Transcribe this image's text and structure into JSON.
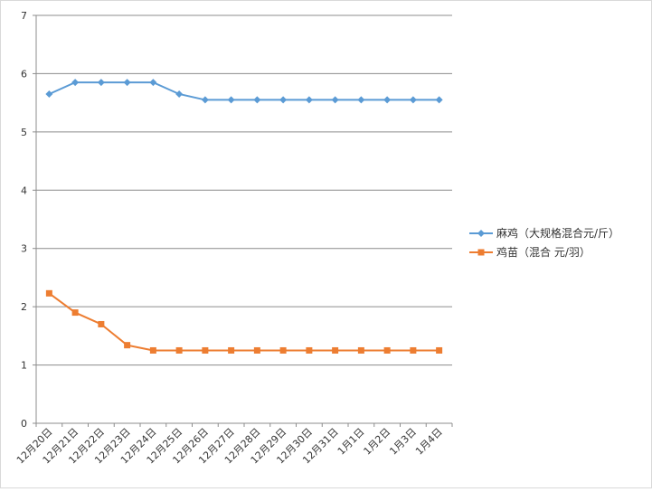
{
  "chart_data": {
    "type": "line",
    "categories": [
      "12月20日",
      "12月21日",
      "12月22日",
      "12月23日",
      "12月24日",
      "12月25日",
      "12月26日",
      "12月27日",
      "12月28日",
      "12月29日",
      "12月30日",
      "12月31日",
      "1月1日",
      "1月2日",
      "1月3日",
      "1月4日"
    ],
    "series": [
      {
        "name": "麻鸡（大规格混合元/斤）",
        "color": "#5B9BD5",
        "marker": "diamond",
        "values": [
          5.65,
          5.85,
          5.85,
          5.85,
          5.85,
          5.65,
          5.55,
          5.55,
          5.55,
          5.55,
          5.55,
          5.55,
          5.55,
          5.55,
          5.55,
          5.55
        ]
      },
      {
        "name": "鸡苗（混合 元/羽）",
        "color": "#ED7D31",
        "marker": "square",
        "values": [
          2.23,
          1.9,
          1.7,
          1.34,
          1.25,
          1.25,
          1.25,
          1.25,
          1.25,
          1.25,
          1.25,
          1.25,
          1.25,
          1.25,
          1.25,
          1.25
        ]
      }
    ],
    "ylim": [
      0,
      7
    ],
    "yticks": [
      0,
      1,
      2,
      3,
      4,
      5,
      6,
      7
    ],
    "grid": true,
    "legend_position": "right",
    "title": "",
    "xlabel": "",
    "ylabel": ""
  }
}
